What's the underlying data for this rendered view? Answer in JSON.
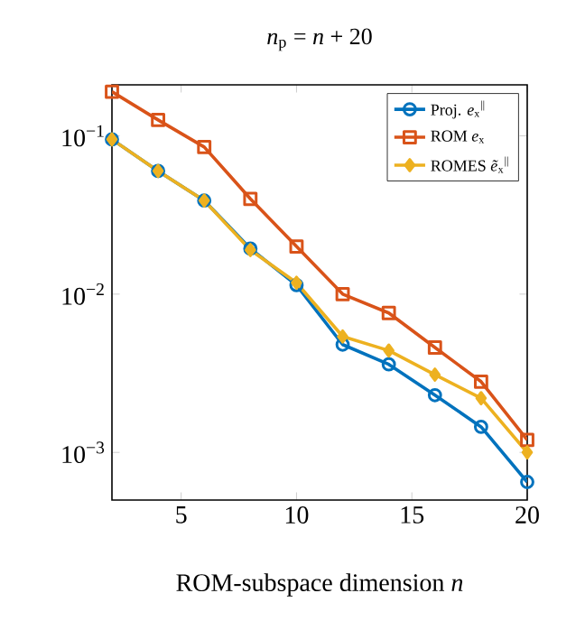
{
  "chart_data": {
    "type": "line",
    "title": "*n*$_{p}$ = *n* + 20",
    "xlabel": "ROM-subspace dimension *n*",
    "x": [
      2,
      4,
      6,
      8,
      10,
      12,
      14,
      16,
      18,
      20
    ],
    "series": [
      {
        "name": "Proj. *e*$_{x}$$^{||}$",
        "color": "#0072bd",
        "marker": "circle",
        "values": [
          0.095,
          0.06,
          0.039,
          0.0194,
          0.0114,
          0.0048,
          0.0036,
          0.0023,
          0.00145,
          0.00065
        ]
      },
      {
        "name": "ROM *e*$_{x}$",
        "color": "#d95319",
        "marker": "square",
        "values": [
          0.19,
          0.126,
          0.085,
          0.04,
          0.02,
          0.01,
          0.0076,
          0.0046,
          0.0028,
          0.0012
        ]
      },
      {
        "name": "ROMES *ẽ*$_{x}$$^{||}$",
        "color": "#edb120",
        "marker": "diamond",
        "values": [
          0.095,
          0.06,
          0.039,
          0.019,
          0.0118,
          0.0054,
          0.0044,
          0.0031,
          0.0022,
          0.001
        ]
      }
    ],
    "xlim": [
      2,
      20
    ],
    "ylim": [
      0.0005,
      0.21
    ],
    "xticks": [
      5,
      10,
      15,
      20
    ],
    "yticks": [
      {
        "value": 0.1,
        "label": "10$^{−1}$"
      },
      {
        "value": 0.01,
        "label": "10$^{−2}$"
      },
      {
        "value": 0.001,
        "label": "10$^{−3}$"
      }
    ],
    "log": true,
    "legend": "top right"
  }
}
